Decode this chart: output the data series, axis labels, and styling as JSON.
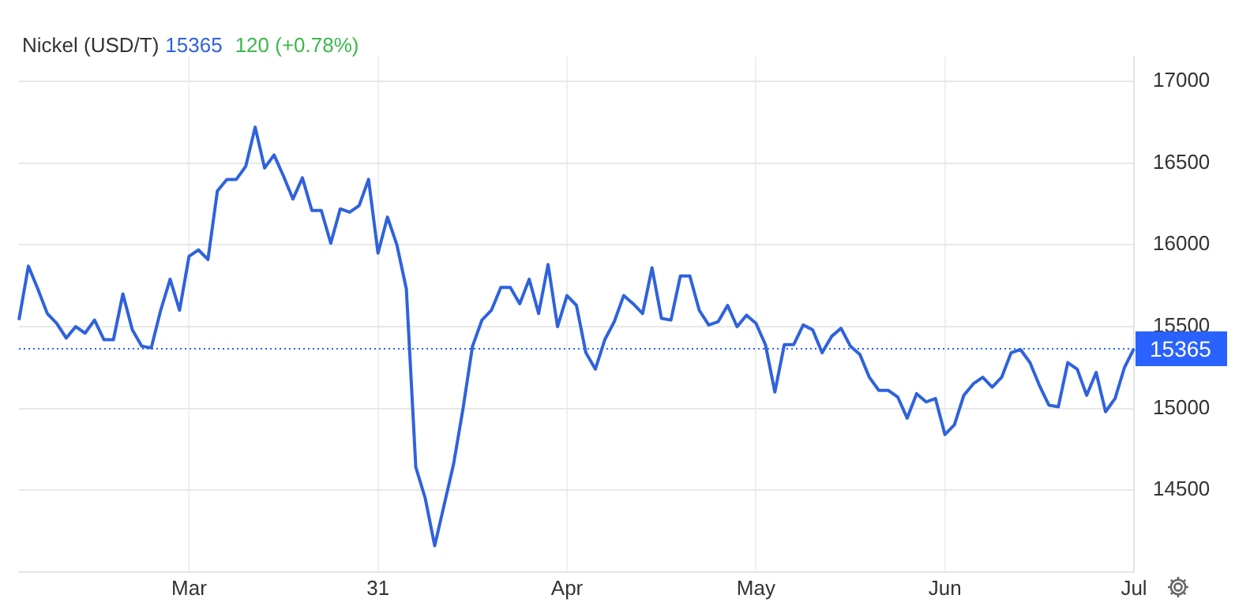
{
  "chart_data": {
    "type": "line",
    "title": "Nickel (USD/T)",
    "annotations": [
      "15365",
      "120 (+0.78%)"
    ],
    "categories": [
      null,
      null,
      null,
      null,
      null,
      null,
      null,
      null,
      null,
      null,
      null,
      null,
      null,
      null,
      null,
      null,
      null,
      null,
      "Mar",
      null,
      null,
      null,
      null,
      null,
      null,
      null,
      null,
      null,
      null,
      null,
      null,
      null,
      null,
      null,
      null,
      null,
      null,
      null,
      "31",
      null,
      null,
      null,
      null,
      null,
      null,
      null,
      null,
      null,
      null,
      null,
      null,
      null,
      null,
      null,
      null,
      null,
      null,
      null,
      "Apr",
      null,
      null,
      null,
      null,
      null,
      null,
      null,
      null,
      null,
      null,
      null,
      null,
      null,
      null,
      null,
      null,
      null,
      null,
      null,
      "May",
      null,
      null,
      null,
      null,
      null,
      null,
      null,
      null,
      null,
      null,
      null,
      null,
      null,
      null,
      null,
      null,
      null,
      null,
      null,
      "Jun",
      null,
      null,
      null,
      null,
      null,
      null,
      null,
      null,
      null,
      null,
      null,
      null,
      null,
      null,
      null,
      null,
      null,
      null,
      null,
      "Jul"
    ],
    "series": [
      {
        "color": "#2f62dc",
        "values": [
          15540,
          15870,
          15730,
          15580,
          15520,
          15430,
          15500,
          15460,
          15540,
          15420,
          15420,
          15700,
          15480,
          15380,
          15370,
          15600,
          15790,
          15600,
          15930,
          15970,
          15910,
          16330,
          16400,
          16400,
          16480,
          16720,
          16470,
          16550,
          16420,
          16280,
          16410,
          16210,
          16210,
          16010,
          16220,
          16200,
          16240,
          16400,
          15950,
          16170,
          16000,
          15730,
          14640,
          14450,
          14160,
          14410,
          14660,
          15000,
          15380,
          15540,
          15600,
          15740,
          15740,
          15640,
          15790,
          15580,
          15880,
          15500,
          15690,
          15630,
          15340,
          15240,
          15420,
          15530,
          15690,
          15640,
          15580,
          15860,
          15550,
          15540,
          15810,
          15810,
          15600,
          15510,
          15530,
          15630,
          15500,
          15570,
          15520,
          15390,
          15100,
          15390,
          15390,
          15510,
          15480,
          15340,
          15440,
          15490,
          15380,
          15330,
          15190,
          15110,
          15110,
          15070,
          14940,
          15090,
          15040,
          15060,
          14840,
          14900,
          15080,
          15150,
          15190,
          15130,
          15190,
          15340,
          15360,
          15280,
          15140,
          15020,
          15010,
          15280,
          15240,
          15080,
          15220,
          14980,
          15060,
          15250,
          15365
        ]
      }
    ],
    "ylim": [
      14000,
      17150
    ],
    "yticks": [
      14500,
      15000,
      15500,
      16000,
      16500,
      17000
    ],
    "ref_lines": [
      {
        "axis": "y",
        "value": 15365,
        "label": "15365",
        "color": "#2962ff",
        "line_style": "dotted"
      }
    ],
    "grid": true,
    "legend": false,
    "marker": "none",
    "line_style": "solid"
  }
}
